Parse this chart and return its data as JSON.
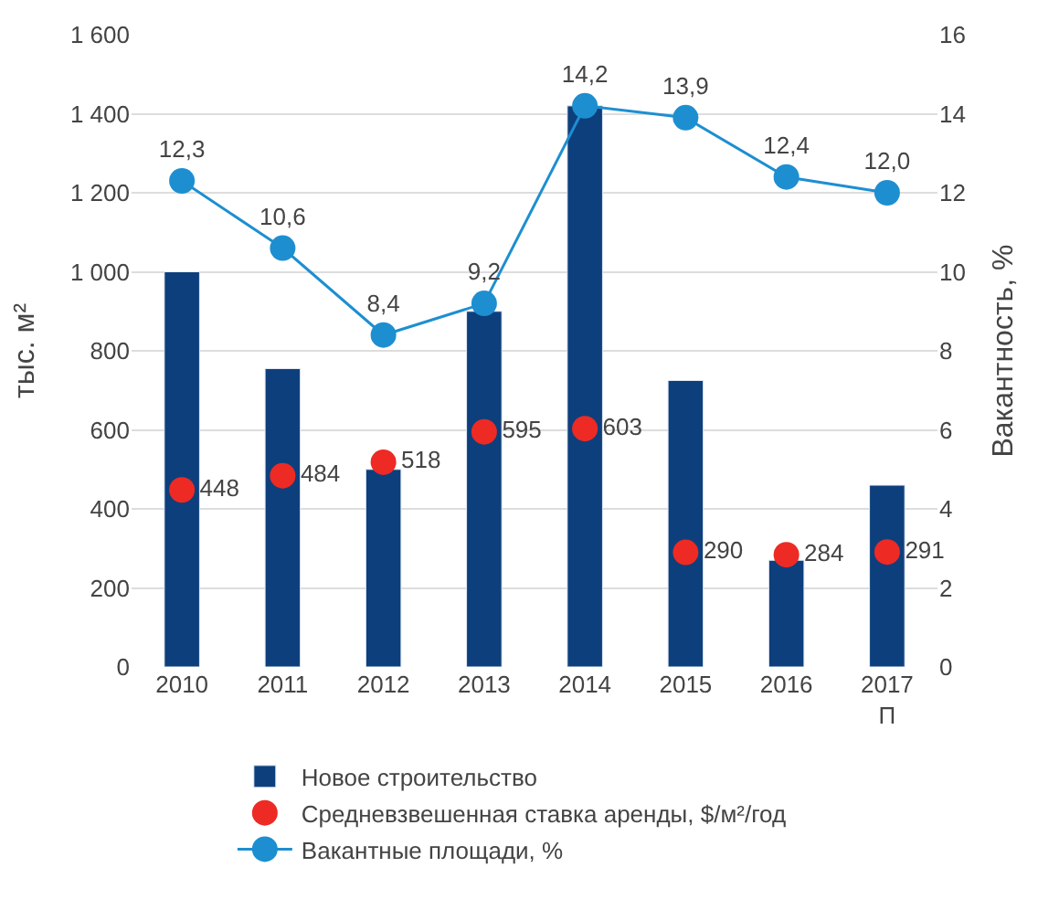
{
  "chart_data": {
    "type": "bar",
    "categories": [
      "2010",
      "2011",
      "2012",
      "2013",
      "2014",
      "2015",
      "2016",
      "2017\nП"
    ],
    "ylabel": "тыс. м²",
    "y2label": "Вакантность, %",
    "series": [
      {
        "name": "Новое строительство",
        "color": "#0d3f7c",
        "values": [
          1000,
          755,
          500,
          900,
          1420,
          725,
          270,
          460
        ]
      },
      {
        "name": "Средневзвешенная ставка аренды, $/м²/год",
        "type": "scatter",
        "color": "#ee2a24",
        "values": [
          448,
          484,
          518,
          595,
          603,
          290,
          284,
          291
        ],
        "value_labels": [
          "448",
          "484",
          "518",
          "595",
          "603",
          "290",
          "284",
          "291"
        ]
      },
      {
        "name": "Вакантные площади, %",
        "type": "line",
        "axis": "y2",
        "color": "#1d8fd1",
        "marker": "circle",
        "values": [
          12.3,
          10.6,
          8.4,
          9.2,
          14.2,
          13.9,
          12.4,
          12.0
        ],
        "value_labels": [
          "12,3",
          "10,6",
          "8,4",
          "9,2",
          "14,2",
          "13,9",
          "12,4",
          "12,0"
        ]
      }
    ],
    "ylim": [
      0,
      1600
    ],
    "yticks": [
      0,
      200,
      400,
      600,
      800,
      {
        "value": 1000,
        "label": "1 000"
      },
      {
        "value": 1200,
        "label": "1 200"
      },
      {
        "value": 1400,
        "label": "1 400"
      },
      {
        "value": 1600,
        "label": "1 600"
      }
    ],
    "y2lim": [
      0,
      16
    ],
    "y2ticks": [
      0,
      2,
      4,
      6,
      8,
      10,
      12,
      14,
      16
    ],
    "grid": "y",
    "legend": "bottom"
  }
}
